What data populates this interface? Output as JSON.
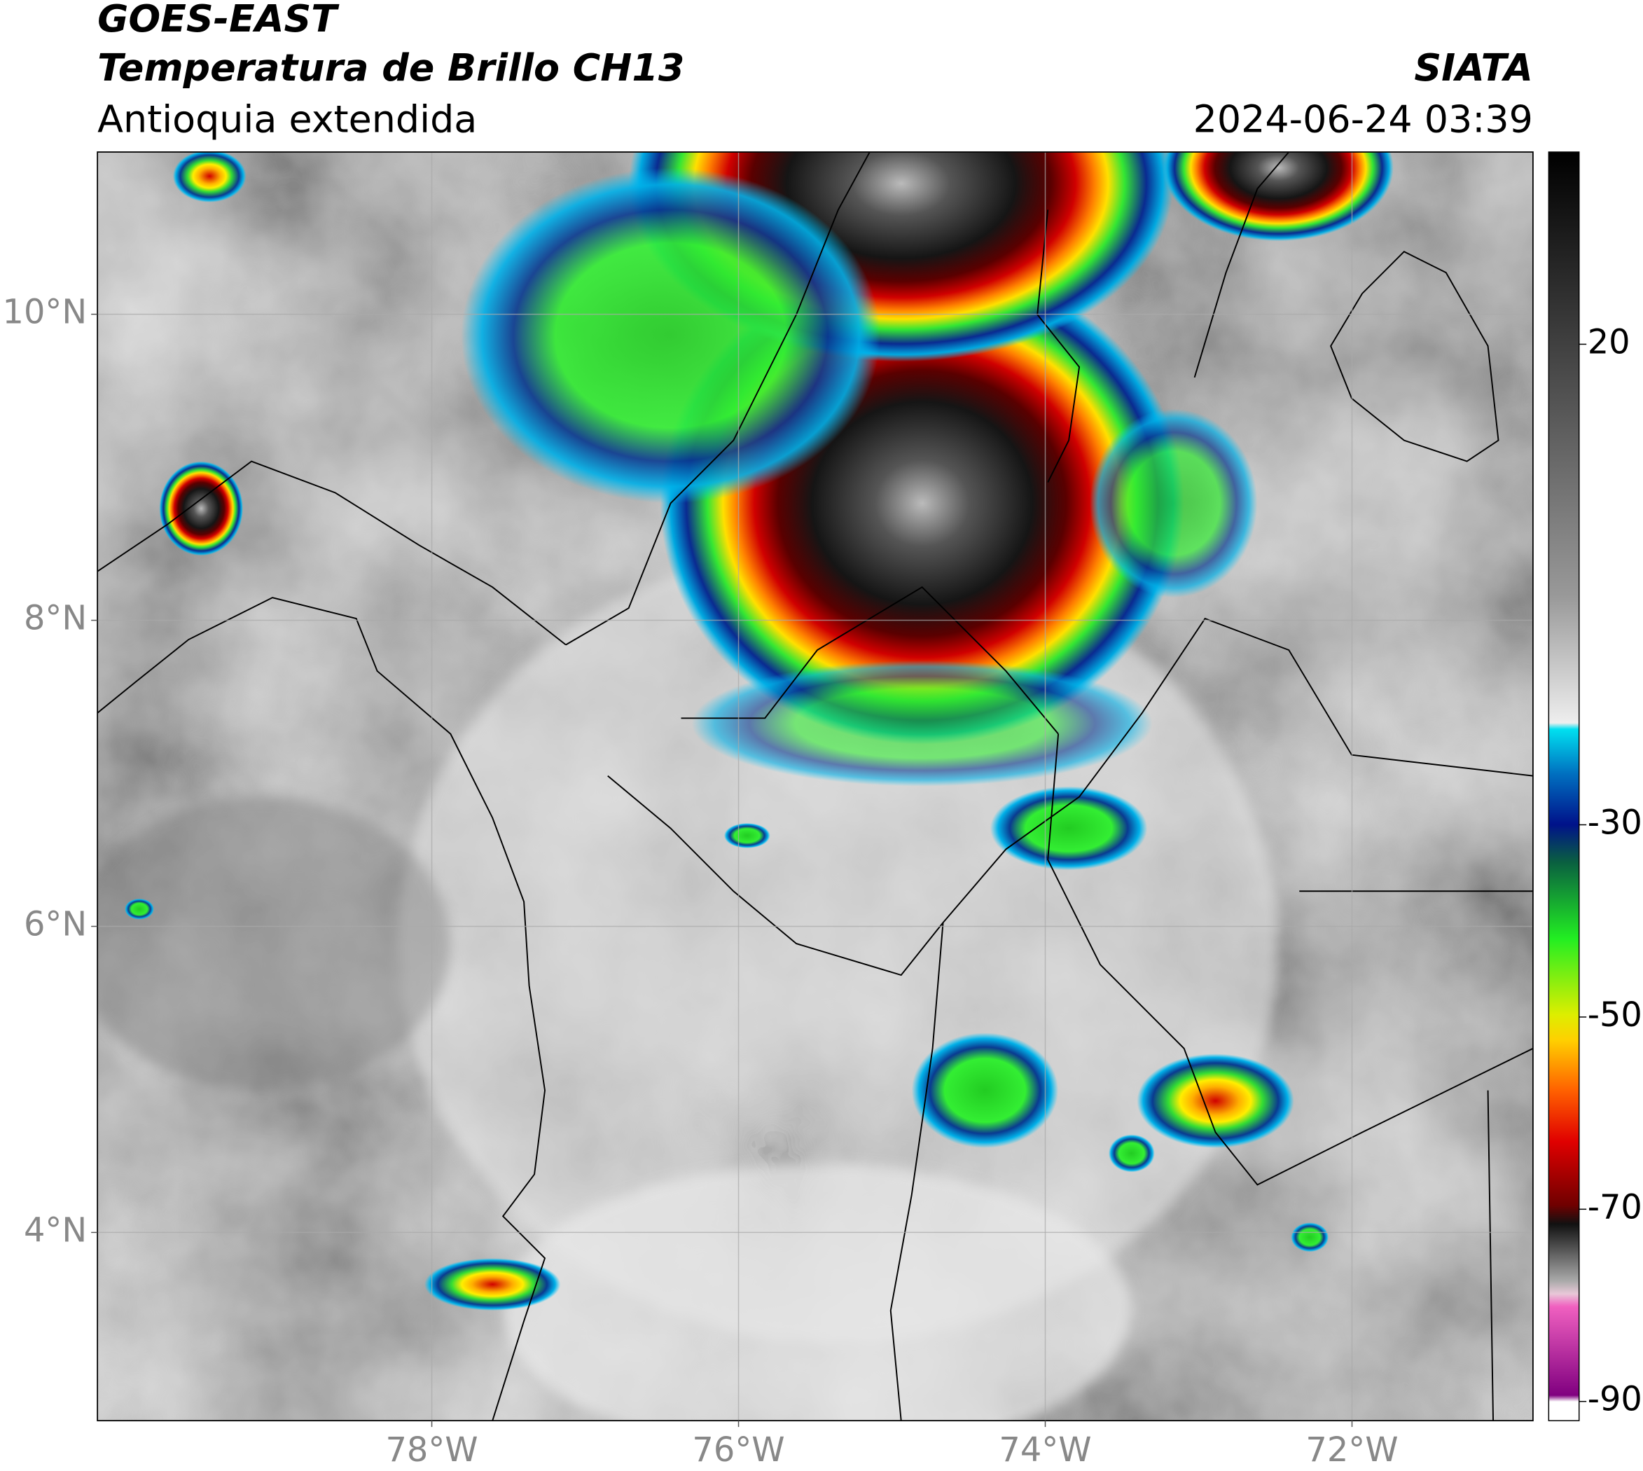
{
  "header": {
    "title_lines": [
      "GOES-EAST",
      "Temperatura de Brillo CH13"
    ],
    "subtitle": "Antioquia extendida",
    "source": "SIATA",
    "timestamp": "2024-06-24 03:39"
  },
  "map": {
    "lon_lim": [
      -80.18,
      -70.82
    ],
    "lat_lim": [
      2.77,
      11.06
    ],
    "lat_ticks": [
      {
        "value": 10,
        "label": "10°N"
      },
      {
        "value": 8,
        "label": "8°N"
      },
      {
        "value": 6,
        "label": "6°N"
      },
      {
        "value": 4,
        "label": "4°N"
      }
    ],
    "lon_ticks": [
      {
        "value": -78,
        "label": "78°W"
      },
      {
        "value": -76,
        "label": "76°W"
      },
      {
        "value": -74,
        "label": "74°W"
      },
      {
        "value": -72,
        "label": "72°W"
      }
    ],
    "grid": true
  },
  "colorbar": {
    "lim": [
      -92,
      40
    ],
    "ticks": [
      20,
      -30,
      -50,
      -70,
      -90
    ]
  }
}
